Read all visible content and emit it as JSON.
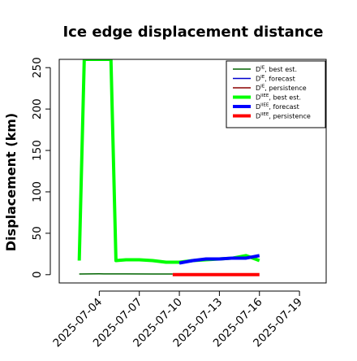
{
  "chart_data": {
    "type": "line",
    "title": "Ice edge displacement distance",
    "xlabel": "",
    "ylabel": "Displacement (km)",
    "x_range": [
      "2025-07-01",
      "2025-07-21"
    ],
    "ylim": [
      -10,
      260
    ],
    "y_ticks": [
      0,
      50,
      100,
      150,
      200,
      250
    ],
    "x_ticks": [
      {
        "date": "2025-07-04",
        "label": "2025-07-04",
        "color": "#000000"
      },
      {
        "date": "2025-07-07",
        "label": "2025-07-07",
        "color": "#000000"
      },
      {
        "date": "2025-07-10",
        "label": "2025-07-10",
        "color": "#228B22"
      },
      {
        "date": "2025-07-13",
        "label": "2025-07-13",
        "color": "#000000"
      },
      {
        "date": "2025-07-16",
        "label": "2025-07-16",
        "color": "#000000"
      },
      {
        "date": "2025-07-19",
        "label": "2025-07-19",
        "color": "#000000"
      }
    ],
    "grid": false,
    "legend_position": "top-right",
    "series": [
      {
        "key": "d_ie_best",
        "name": "D",
        "sup": "IE",
        "suffix": ", best est.",
        "color": "#006400",
        "width": 1.5,
        "points": [
          [
            "2025-07-02T12:00",
            0.8
          ],
          [
            "2025-07-04",
            1.0
          ],
          [
            "2025-07-06",
            0.9
          ],
          [
            "2025-07-08",
            0.8
          ],
          [
            "2025-07-09T12:00",
            0.8
          ]
        ]
      },
      {
        "key": "d_ie_forecast",
        "name": "D",
        "sup": "IE",
        "suffix": ", forecast",
        "color": "#0000CD",
        "width": 1.5,
        "points": []
      },
      {
        "key": "d_ie_persistence",
        "name": "D",
        "sup": "IE",
        "suffix": ", persistence",
        "color": "#8B0000",
        "width": 1.5,
        "points": []
      },
      {
        "key": "d_iiee_best",
        "name": "D",
        "sup": "IIEE",
        "suffix": ", best est.",
        "color": "#00FF00",
        "width": 4,
        "points": [
          [
            "2025-07-02T12:00",
            17
          ],
          [
            "2025-07-02T21:00",
            260
          ],
          [
            "2025-07-04T21:00",
            260
          ],
          [
            "2025-07-05T06:00",
            17
          ],
          [
            "2025-07-06",
            18
          ],
          [
            "2025-07-07",
            18
          ],
          [
            "2025-07-08",
            17
          ],
          [
            "2025-07-09",
            15
          ],
          [
            "2025-07-10",
            15
          ],
          [
            "2025-07-11",
            17
          ],
          [
            "2025-07-12",
            18
          ],
          [
            "2025-07-13",
            19
          ],
          [
            "2025-07-14",
            20
          ],
          [
            "2025-07-15",
            23
          ],
          [
            "2025-07-16",
            17
          ]
        ]
      },
      {
        "key": "d_iiee_forecast",
        "name": "D",
        "sup": "IIEE",
        "suffix": ", forecast",
        "color": "#0000FF",
        "width": 4,
        "points": [
          [
            "2025-07-10",
            14
          ],
          [
            "2025-07-11",
            17
          ],
          [
            "2025-07-12",
            19
          ],
          [
            "2025-07-13",
            19
          ],
          [
            "2025-07-14",
            20
          ],
          [
            "2025-07-15",
            20
          ],
          [
            "2025-07-16",
            23
          ]
        ]
      },
      {
        "key": "d_iiee_persistence",
        "name": "D",
        "sup": "IIEE",
        "suffix": ", persistence",
        "color": "#FF0000",
        "width": 4,
        "points": [
          [
            "2025-07-09T12:00",
            0
          ],
          [
            "2025-07-16",
            0
          ]
        ]
      }
    ]
  }
}
